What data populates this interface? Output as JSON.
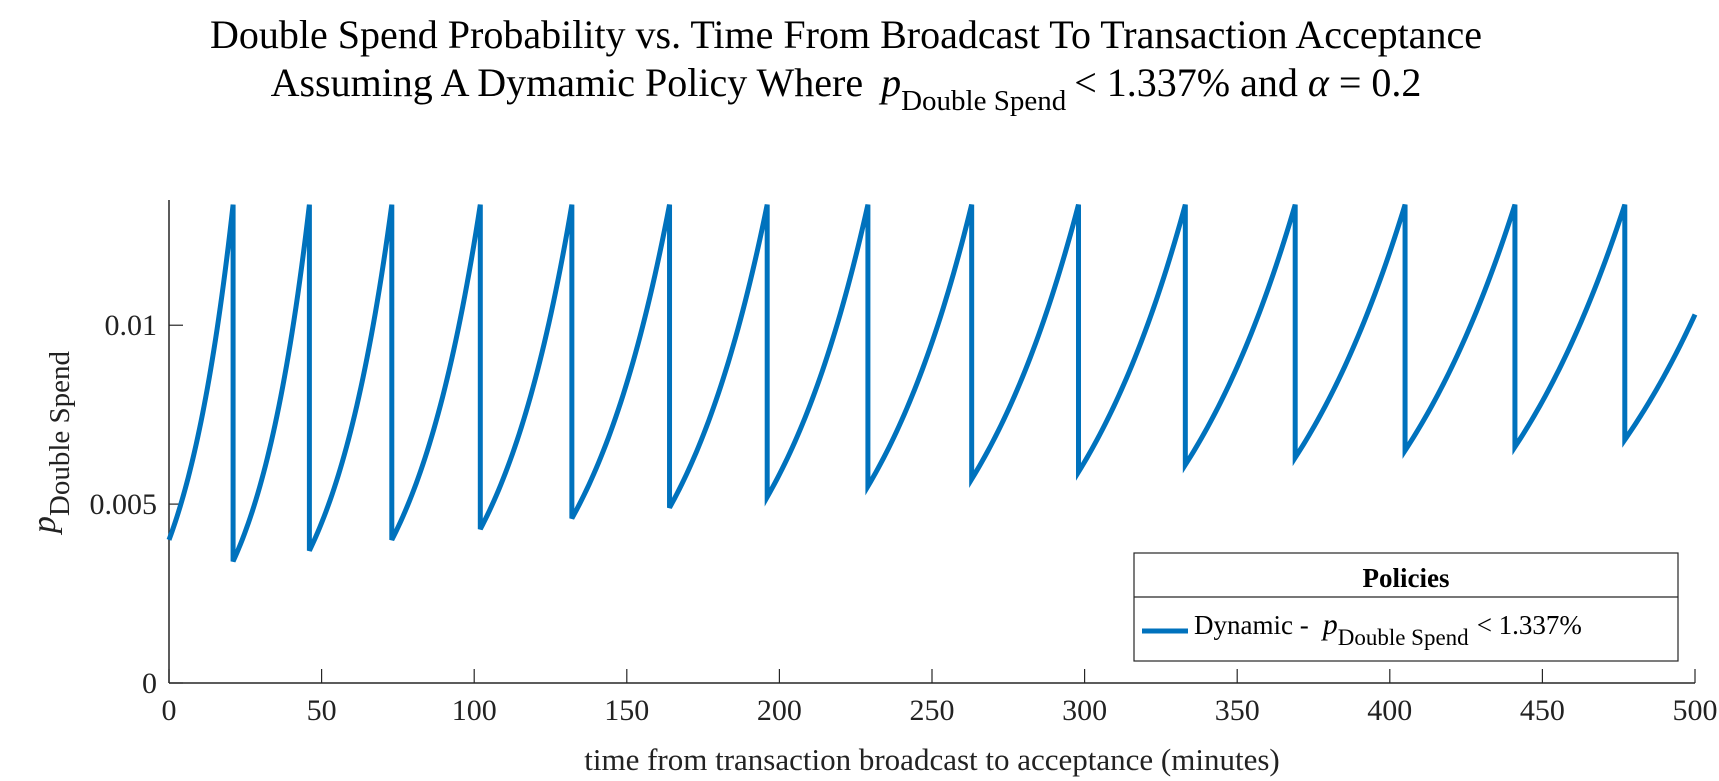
{
  "title": {
    "line1": "Double Spend Probability vs. Time From Broadcast To Transaction Acceptance",
    "line2_prefix": "Assuming A Dymamic Policy Where",
    "line2_var": "p",
    "line2_sub": "Double Spend",
    "line2_rel": "< 1.337% and",
    "line2_alpha": "α",
    "line2_suffix": "= 0.2"
  },
  "colors": {
    "series": "#0072BD",
    "axis": "#262626",
    "legend_border": "#262626"
  },
  "chart_data": {
    "type": "line",
    "xlabel": "time from transaction broadcast to acceptance (minutes)",
    "ylabel_var": "p",
    "ylabel_sub": "Double Spend",
    "xlim": [
      0,
      500
    ],
    "ylim": [
      0,
      0.0135
    ],
    "xticks": [
      0,
      50,
      100,
      150,
      200,
      250,
      300,
      350,
      400,
      450,
      500
    ],
    "xtick_labels": [
      "0",
      "50",
      "100",
      "150",
      "200",
      "250",
      "300",
      "350",
      "400",
      "450",
      "500"
    ],
    "yticks": [
      0,
      0.005,
      0.01
    ],
    "ytick_labels": [
      "0",
      "0.005",
      "0.01"
    ],
    "grid": false,
    "legend": {
      "title": "Policies",
      "placement": "bottom-right",
      "entry_prefix": "Dynamic -",
      "entry_var": "p",
      "entry_sub": "Double Spend",
      "entry_suffix": "< 1.337%"
    },
    "series": [
      {
        "name": "Dynamic - pDouble Spend < 1.337%",
        "segments": [
          {
            "x0": 0,
            "y0": 0.004,
            "x1": 21,
            "y1": 0.01337
          },
          {
            "x0": 21,
            "y0": 0.0034,
            "x1": 46,
            "y1": 0.01337
          },
          {
            "x0": 46,
            "y0": 0.0037,
            "x1": 73,
            "y1": 0.01337
          },
          {
            "x0": 73,
            "y0": 0.004,
            "x1": 102,
            "y1": 0.01337
          },
          {
            "x0": 102,
            "y0": 0.0043,
            "x1": 132,
            "y1": 0.01337
          },
          {
            "x0": 132,
            "y0": 0.0046,
            "x1": 164,
            "y1": 0.01337
          },
          {
            "x0": 164,
            "y0": 0.0049,
            "x1": 196,
            "y1": 0.01337
          },
          {
            "x0": 196,
            "y0": 0.0052,
            "x1": 229,
            "y1": 0.01337
          },
          {
            "x0": 229,
            "y0": 0.0055,
            "x1": 263,
            "y1": 0.01337
          },
          {
            "x0": 263,
            "y0": 0.0057,
            "x1": 298,
            "y1": 0.01337
          },
          {
            "x0": 298,
            "y0": 0.0059,
            "x1": 333,
            "y1": 0.01337
          },
          {
            "x0": 333,
            "y0": 0.0061,
            "x1": 369,
            "y1": 0.01337
          },
          {
            "x0": 369,
            "y0": 0.0063,
            "x1": 405,
            "y1": 0.01337
          },
          {
            "x0": 405,
            "y0": 0.0065,
            "x1": 441,
            "y1": 0.01337
          },
          {
            "x0": 441,
            "y0": 0.0066,
            "x1": 477,
            "y1": 0.01337
          },
          {
            "x0": 477,
            "y0": 0.0068,
            "x1": 500,
            "y1": 0.0103
          }
        ]
      }
    ]
  }
}
